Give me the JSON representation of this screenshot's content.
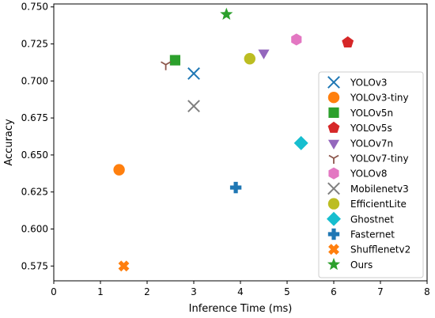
{
  "chart_data": {
    "type": "scatter",
    "xlabel": "Inference Time (ms)",
    "ylabel": "Accuracy",
    "xlim": [
      0,
      8
    ],
    "ylim": [
      0.565,
      0.752
    ],
    "xticks": [
      "0",
      "1",
      "2",
      "3",
      "4",
      "5",
      "6",
      "7",
      "8"
    ],
    "yticks": [
      "0.575",
      "0.600",
      "0.625",
      "0.650",
      "0.675",
      "0.700",
      "0.725",
      "0.750"
    ],
    "grid": false,
    "legend_position": "right",
    "series": [
      {
        "name": "YOLOv3",
        "marker": "x-icon",
        "color": "#1f77b4",
        "x": 3.0,
        "y": 0.705
      },
      {
        "name": "YOLOv3-tiny",
        "marker": "circle-icon",
        "color": "#ff7f0e",
        "x": 1.4,
        "y": 0.64
      },
      {
        "name": "YOLOv5n",
        "marker": "square-icon",
        "color": "#2ca02c",
        "x": 2.6,
        "y": 0.714
      },
      {
        "name": "YOLOv5s",
        "marker": "pentagon-icon",
        "color": "#d62728",
        "x": 6.3,
        "y": 0.726
      },
      {
        "name": "YOLOv7n",
        "marker": "triangle-down-icon",
        "color": "#9467bd",
        "x": 4.5,
        "y": 0.719
      },
      {
        "name": "YOLOv7-tiny",
        "marker": "tri-left-icon",
        "color": "#8c564b",
        "x": 2.4,
        "y": 0.711
      },
      {
        "name": "YOLOv8",
        "marker": "hexagon-icon",
        "color": "#e377c2",
        "x": 5.2,
        "y": 0.728
      },
      {
        "name": "Mobilenetv3",
        "marker": "x-icon",
        "color": "#7f7f7f",
        "x": 3.0,
        "y": 0.683
      },
      {
        "name": "EfficientLite",
        "marker": "circle-icon",
        "color": "#bcbd22",
        "x": 4.2,
        "y": 0.715
      },
      {
        "name": "Ghostnet",
        "marker": "diamond-icon",
        "color": "#17becf",
        "x": 5.3,
        "y": 0.658
      },
      {
        "name": "Fasternet",
        "marker": "plus-filled-icon",
        "color": "#1f77b4",
        "x": 3.9,
        "y": 0.628
      },
      {
        "name": "Shufflenetv2",
        "marker": "x-filled-icon",
        "color": "#ff7f0e",
        "x": 1.5,
        "y": 0.575
      },
      {
        "name": "Ours",
        "marker": "star-icon",
        "color": "#2ca02c",
        "x": 3.7,
        "y": 0.745
      }
    ]
  }
}
